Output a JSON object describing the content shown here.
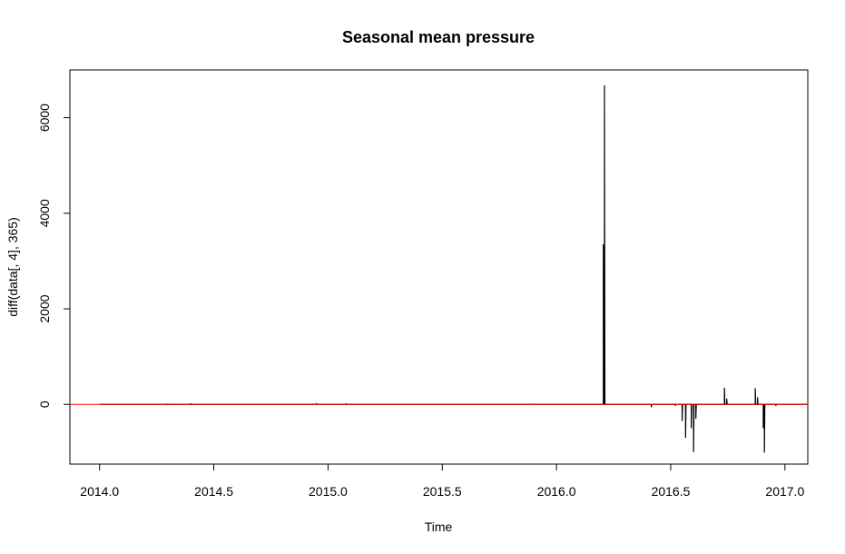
{
  "chart_data": {
    "type": "line",
    "title": "Seasonal mean pressure",
    "xlabel": "Time",
    "ylabel": "diff(data[, 4], 365)",
    "xlim": [
      2013.87,
      2017.1
    ],
    "ylim": [
      -1250,
      7000
    ],
    "x_ticks": [
      2014.0,
      2014.5,
      2015.0,
      2015.5,
      2016.0,
      2016.5,
      2017.0
    ],
    "x_tick_labels": [
      "2014.0",
      "2014.5",
      "2015.0",
      "2015.5",
      "2016.0",
      "2016.5",
      "2017.0"
    ],
    "y_ticks": [
      0,
      2000,
      4000,
      6000
    ],
    "y_tick_labels": [
      "0",
      "2000",
      "4000",
      "6000"
    ],
    "grid": false,
    "reference_line": {
      "y": 0,
      "color": "#ff0000"
    },
    "series": [
      {
        "color": "#000000",
        "points": [
          [
            2014.0,
            0
          ],
          [
            2014.3,
            0
          ],
          [
            2014.3,
            5
          ],
          [
            2014.302,
            0
          ],
          [
            2014.4,
            0
          ],
          [
            2014.4,
            8
          ],
          [
            2014.402,
            0
          ],
          [
            2014.95,
            0
          ],
          [
            2014.95,
            10
          ],
          [
            2014.952,
            0
          ],
          [
            2015.08,
            0
          ],
          [
            2015.08,
            8
          ],
          [
            2015.082,
            0
          ],
          [
            2015.9,
            0
          ],
          [
            2015.9,
            5
          ],
          [
            2015.902,
            0
          ],
          [
            2016.205,
            0
          ],
          [
            2016.205,
            3350
          ],
          [
            2016.207,
            0
          ],
          [
            2016.21,
            0
          ],
          [
            2016.21,
            6680
          ],
          [
            2016.212,
            0
          ],
          [
            2016.415,
            0
          ],
          [
            2016.415,
            -60
          ],
          [
            2016.417,
            0
          ],
          [
            2016.52,
            0
          ],
          [
            2016.52,
            -30
          ],
          [
            2016.522,
            0
          ],
          [
            2016.55,
            0
          ],
          [
            2016.55,
            -350
          ],
          [
            2016.552,
            0
          ],
          [
            2016.565,
            0
          ],
          [
            2016.565,
            -700
          ],
          [
            2016.567,
            0
          ],
          [
            2016.59,
            0
          ],
          [
            2016.59,
            -500
          ],
          [
            2016.592,
            0
          ],
          [
            2016.6,
            0
          ],
          [
            2016.6,
            -1000
          ],
          [
            2016.602,
            0
          ],
          [
            2016.61,
            0
          ],
          [
            2016.61,
            -300
          ],
          [
            2016.612,
            0
          ],
          [
            2016.735,
            0
          ],
          [
            2016.735,
            350
          ],
          [
            2016.737,
            0
          ],
          [
            2016.745,
            0
          ],
          [
            2016.745,
            120
          ],
          [
            2016.747,
            0
          ],
          [
            2016.87,
            0
          ],
          [
            2016.87,
            340
          ],
          [
            2016.872,
            0
          ],
          [
            2016.88,
            0
          ],
          [
            2016.88,
            150
          ],
          [
            2016.882,
            0
          ],
          [
            2016.905,
            0
          ],
          [
            2016.905,
            -500
          ],
          [
            2016.907,
            0
          ],
          [
            2016.91,
            0
          ],
          [
            2016.91,
            -1010
          ],
          [
            2016.912,
            0
          ],
          [
            2016.96,
            0
          ],
          [
            2016.96,
            -30
          ],
          [
            2016.962,
            0
          ],
          [
            2017.1,
            0
          ]
        ]
      }
    ]
  }
}
